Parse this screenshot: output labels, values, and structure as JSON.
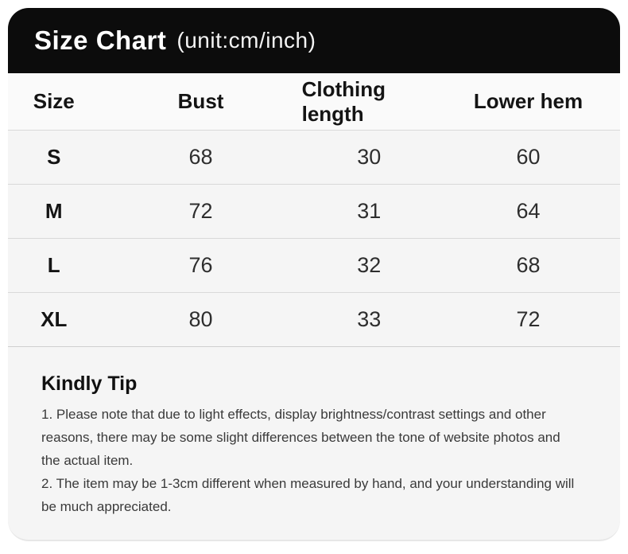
{
  "header": {
    "title": "Size Chart",
    "unit": "(unit:cm/inch)"
  },
  "chart_data": {
    "type": "table",
    "title": "Size Chart",
    "unit_label": "(unit:cm/inch)",
    "columns": [
      "Size",
      "Bust",
      "Clothing length",
      "Lower hem"
    ],
    "rows": [
      [
        "S",
        "68",
        "30",
        "60"
      ],
      [
        "M",
        "72",
        "31",
        "64"
      ],
      [
        "L",
        "76",
        "32",
        "68"
      ],
      [
        "XL",
        "80",
        "33",
        "72"
      ]
    ]
  },
  "tip": {
    "heading": "Kindly Tip",
    "notes": [
      "1. Please note that due to light effects, display brightness/contrast settings and other reasons, there may be some slight differences between the tone of website photos and the actual item.",
      "2. The item may be 1-3cm different when measured by hand, and your understanding will be much appreciated."
    ]
  },
  "colors": {
    "header_bg": "#0c0c0c",
    "header_text": "#ffffff",
    "card_bg": "#f5f5f5",
    "table_header_bg": "#fafafa",
    "divider": "#d9d9d9",
    "heading_text": "#141414",
    "value_text": "#2e2e2e",
    "body_text": "#3a3a3a"
  }
}
